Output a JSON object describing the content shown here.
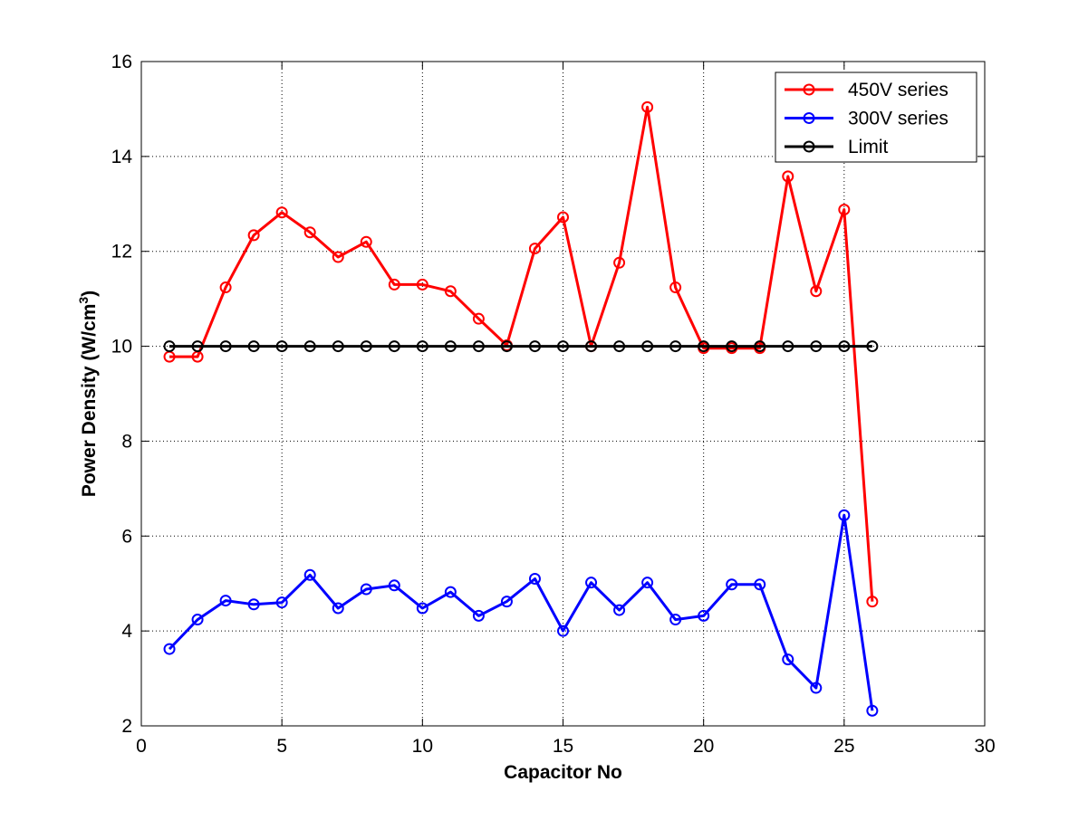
{
  "chart_data": {
    "type": "line",
    "title": "",
    "xlabel": "Capacitor No",
    "ylabel": "Power Density (W/cm",
    "ylabel_superscript": "3",
    "ylabel_suffix": ")",
    "xlim": [
      0,
      30
    ],
    "ylim": [
      2,
      16
    ],
    "xticks": [
      0,
      5,
      10,
      15,
      20,
      25,
      30
    ],
    "yticks": [
      2,
      4,
      6,
      8,
      10,
      12,
      14,
      16
    ],
    "grid": true,
    "grid_style": "dotted",
    "legend_position": "top-right",
    "marker": "circle",
    "x": [
      1,
      2,
      3,
      4,
      5,
      6,
      7,
      8,
      9,
      10,
      11,
      12,
      13,
      14,
      15,
      16,
      17,
      18,
      19,
      20,
      21,
      22,
      23,
      24,
      25,
      26
    ],
    "series": [
      {
        "name": "450V series",
        "color": "#ff0000",
        "values": [
          9.78,
          9.78,
          11.24,
          12.34,
          12.82,
          12.4,
          11.88,
          12.2,
          11.3,
          11.3,
          11.16,
          10.58,
          10.02,
          12.06,
          12.72,
          10.0,
          11.76,
          15.04,
          11.24,
          9.96,
          9.96,
          9.96,
          13.58,
          11.16,
          12.88,
          4.62
        ]
      },
      {
        "name": "300V series",
        "color": "#0000ff",
        "values": [
          3.62,
          4.24,
          4.64,
          4.56,
          4.6,
          5.18,
          4.48,
          4.88,
          4.96,
          4.48,
          4.82,
          4.32,
          4.62,
          5.1,
          4.0,
          5.02,
          4.44,
          5.02,
          4.24,
          4.32,
          4.98,
          4.98,
          3.4,
          2.8,
          6.44,
          2.32
        ]
      },
      {
        "name": "Limit",
        "color": "#000000",
        "values": [
          10,
          10,
          10,
          10,
          10,
          10,
          10,
          10,
          10,
          10,
          10,
          10,
          10,
          10,
          10,
          10,
          10,
          10,
          10,
          10,
          10,
          10,
          10,
          10,
          10,
          10
        ]
      }
    ]
  }
}
